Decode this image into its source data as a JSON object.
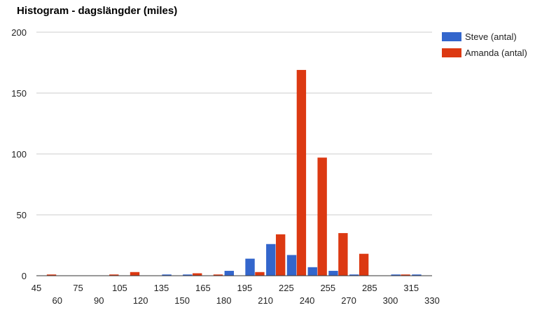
{
  "chart_data": {
    "type": "bar",
    "title": "Histogram - dagslängder (miles)",
    "xlabel": "",
    "ylabel": "",
    "bin_width": 15,
    "xlim": [
      45,
      330
    ],
    "ylim": [
      0,
      200
    ],
    "x_ticks": [
      45,
      60,
      75,
      90,
      105,
      120,
      135,
      150,
      165,
      180,
      195,
      210,
      225,
      240,
      255,
      270,
      285,
      300,
      315,
      330
    ],
    "y_ticks": [
      0,
      50,
      100,
      150,
      200
    ],
    "grid": true,
    "legend_position": "right",
    "categories": [
      45,
      60,
      75,
      90,
      105,
      120,
      135,
      150,
      165,
      180,
      195,
      210,
      225,
      240,
      255,
      270,
      285,
      300,
      315
    ],
    "series": [
      {
        "name": "Steve (antal)",
        "color": "#3366cc",
        "values": [
          0,
          0,
          0,
          0,
          0,
          0,
          1,
          1,
          0,
          4,
          14,
          26,
          17,
          7,
          4,
          1,
          0,
          1,
          1
        ]
      },
      {
        "name": "Amanda (antal)",
        "color": "#dc3912",
        "values": [
          1,
          0,
          0,
          1,
          3,
          0,
          0,
          2,
          1,
          0,
          3,
          34,
          169,
          97,
          35,
          18,
          0,
          1,
          0
        ]
      }
    ]
  }
}
